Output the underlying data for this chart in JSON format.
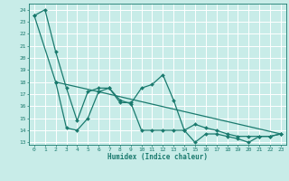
{
  "xlabel": "Humidex (Indice chaleur)",
  "bg_color": "#c8ece8",
  "grid_color": "#ffffff",
  "line_color": "#1a7a6e",
  "xlim": [
    -0.5,
    23.5
  ],
  "ylim": [
    12.8,
    24.5
  ],
  "yticks": [
    13,
    14,
    15,
    16,
    17,
    18,
    19,
    20,
    21,
    22,
    23,
    24
  ],
  "xticks": [
    0,
    1,
    2,
    3,
    4,
    5,
    6,
    7,
    8,
    9,
    10,
    11,
    12,
    13,
    14,
    15,
    16,
    17,
    18,
    19,
    20,
    21,
    22,
    23
  ],
  "line1_x": [
    0,
    1,
    2,
    3,
    4,
    5,
    6,
    7,
    8,
    9,
    10,
    11,
    12,
    13,
    14,
    15,
    16,
    17,
    18,
    19,
    20,
    21,
    22,
    23
  ],
  "line1_y": [
    23.5,
    24.0,
    20.5,
    17.5,
    14.8,
    17.2,
    17.5,
    17.5,
    16.5,
    16.2,
    17.5,
    17.8,
    18.6,
    16.5,
    14.0,
    14.5,
    14.2,
    14.0,
    13.7,
    13.5,
    13.5,
    13.5,
    13.5,
    13.7
  ],
  "line2_x": [
    2,
    3,
    4,
    5,
    6,
    7,
    8,
    9,
    10,
    11,
    12,
    13,
    14,
    15,
    16,
    17,
    18,
    19,
    20,
    21,
    22,
    23
  ],
  "line2_y": [
    18.0,
    14.2,
    14.0,
    15.0,
    17.2,
    17.5,
    16.3,
    16.3,
    14.0,
    14.0,
    14.0,
    14.0,
    14.0,
    13.0,
    13.7,
    13.7,
    13.5,
    13.3,
    13.0,
    13.5,
    13.5,
    13.7
  ],
  "line3_x": [
    0,
    2,
    6,
    23
  ],
  "line3_y": [
    23.5,
    18.0,
    17.2,
    13.7
  ]
}
